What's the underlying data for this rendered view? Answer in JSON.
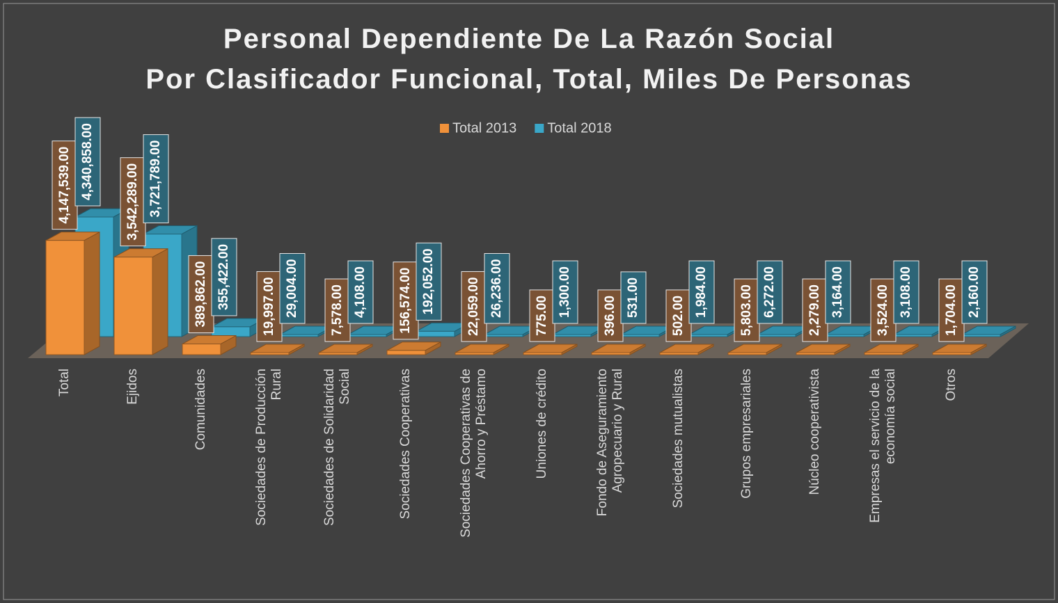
{
  "chart_data": {
    "type": "bar3d",
    "title": "Personal Dependiente De La Razón Social Por Clasificador Funcional, Total, Miles De Personas",
    "categories": [
      "Total",
      "Ejidos",
      "Comunidades",
      "Sociedades de Producción Rural",
      "Sociedades de Solidaridad Social",
      "Sociedades Cooperativas",
      "Sociedades Cooperativas de Ahorro y Préstamo",
      "Uniones de crédito",
      "Fondo de Aseguramiento Agropecuario y Rural",
      "Sociedades mutualistas",
      "Grupos empresariales",
      "Núcleo cooperativista",
      "Empresas el servicio de la economía social",
      "Otros"
    ],
    "series": [
      {
        "name": "Total 2013",
        "color": "#f0913a",
        "values": [
          4147539,
          3542289,
          389862,
          19997,
          7578,
          156574,
          22059,
          775,
          396,
          502,
          5803,
          2279,
          3524,
          1704
        ],
        "value_labels": [
          "4,147,539.00",
          "3,542,289.00",
          "389,862.00",
          "19,997.00",
          "7,578.00",
          "156,574.00",
          "22,059.00",
          "775.00",
          "396.00",
          "502.00",
          "5,803.00",
          "2,279.00",
          "3,524.00",
          "1,704.00"
        ]
      },
      {
        "name": "Total 2018",
        "color": "#3aa7c8",
        "values": [
          4340858,
          3721789,
          355422,
          29004,
          4108,
          192052,
          26236,
          1300,
          531,
          1984,
          6272,
          3164,
          3108,
          2160
        ],
        "value_labels": [
          "4,340,858.00",
          "3,721,789.00",
          "355,422.00",
          "29,004.00",
          "4,108.00",
          "192,052.00",
          "26,236.00",
          "1,300.00",
          "531.00",
          "1,984.00",
          "6,272.00",
          "3,164.00",
          "3,108.00",
          "2,160.00"
        ]
      }
    ],
    "legend": "top"
  }
}
